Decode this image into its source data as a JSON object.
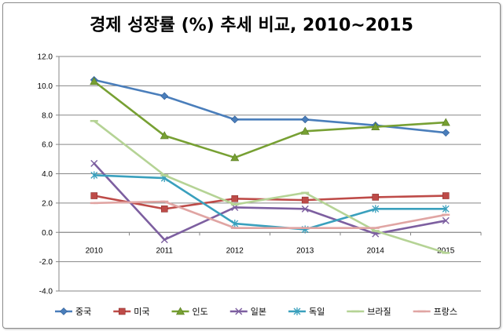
{
  "chart_data": {
    "type": "line",
    "title": "경제 성장률 (%) 추세 비교, 2010~2015",
    "x": [
      "2010",
      "2011",
      "2012",
      "2013",
      "2014",
      "2015"
    ],
    "ylim": [
      -4.0,
      12.0
    ],
    "yticks": [
      "12.0",
      "10.0",
      "8.0",
      "6.0",
      "4.0",
      "2.0",
      "0.0",
      "-2.0",
      "-4.0"
    ],
    "grid": true,
    "legend_position": "bottom",
    "series": [
      {
        "name": "중국",
        "values": [
          10.4,
          9.3,
          7.7,
          7.7,
          7.3,
          6.8
        ],
        "color": "#4a7ebb",
        "marker": "diamond"
      },
      {
        "name": "미국",
        "values": [
          2.5,
          1.6,
          2.3,
          2.2,
          2.4,
          2.5
        ],
        "color": "#be4b48",
        "marker": "square"
      },
      {
        "name": "인도",
        "values": [
          10.3,
          6.6,
          5.1,
          6.9,
          7.2,
          7.5
        ],
        "color": "#77a033",
        "marker": "triangle"
      },
      {
        "name": "일본",
        "values": [
          4.7,
          -0.5,
          1.7,
          1.6,
          -0.1,
          0.8
        ],
        "color": "#7d5fa0",
        "marker": "x"
      },
      {
        "name": "독일",
        "values": [
          3.9,
          3.7,
          0.6,
          0.2,
          1.6,
          1.6
        ],
        "color": "#3aa0bd",
        "marker": "star"
      },
      {
        "name": "브라질",
        "values": [
          7.6,
          3.9,
          1.9,
          2.7,
          0.1,
          -1.4
        ],
        "color": "#b5d395",
        "marker": "line"
      },
      {
        "name": "프랑스",
        "values": [
          2.0,
          2.1,
          0.3,
          0.3,
          0.3,
          1.2
        ],
        "color": "#e0a5a3",
        "marker": "line"
      }
    ]
  }
}
